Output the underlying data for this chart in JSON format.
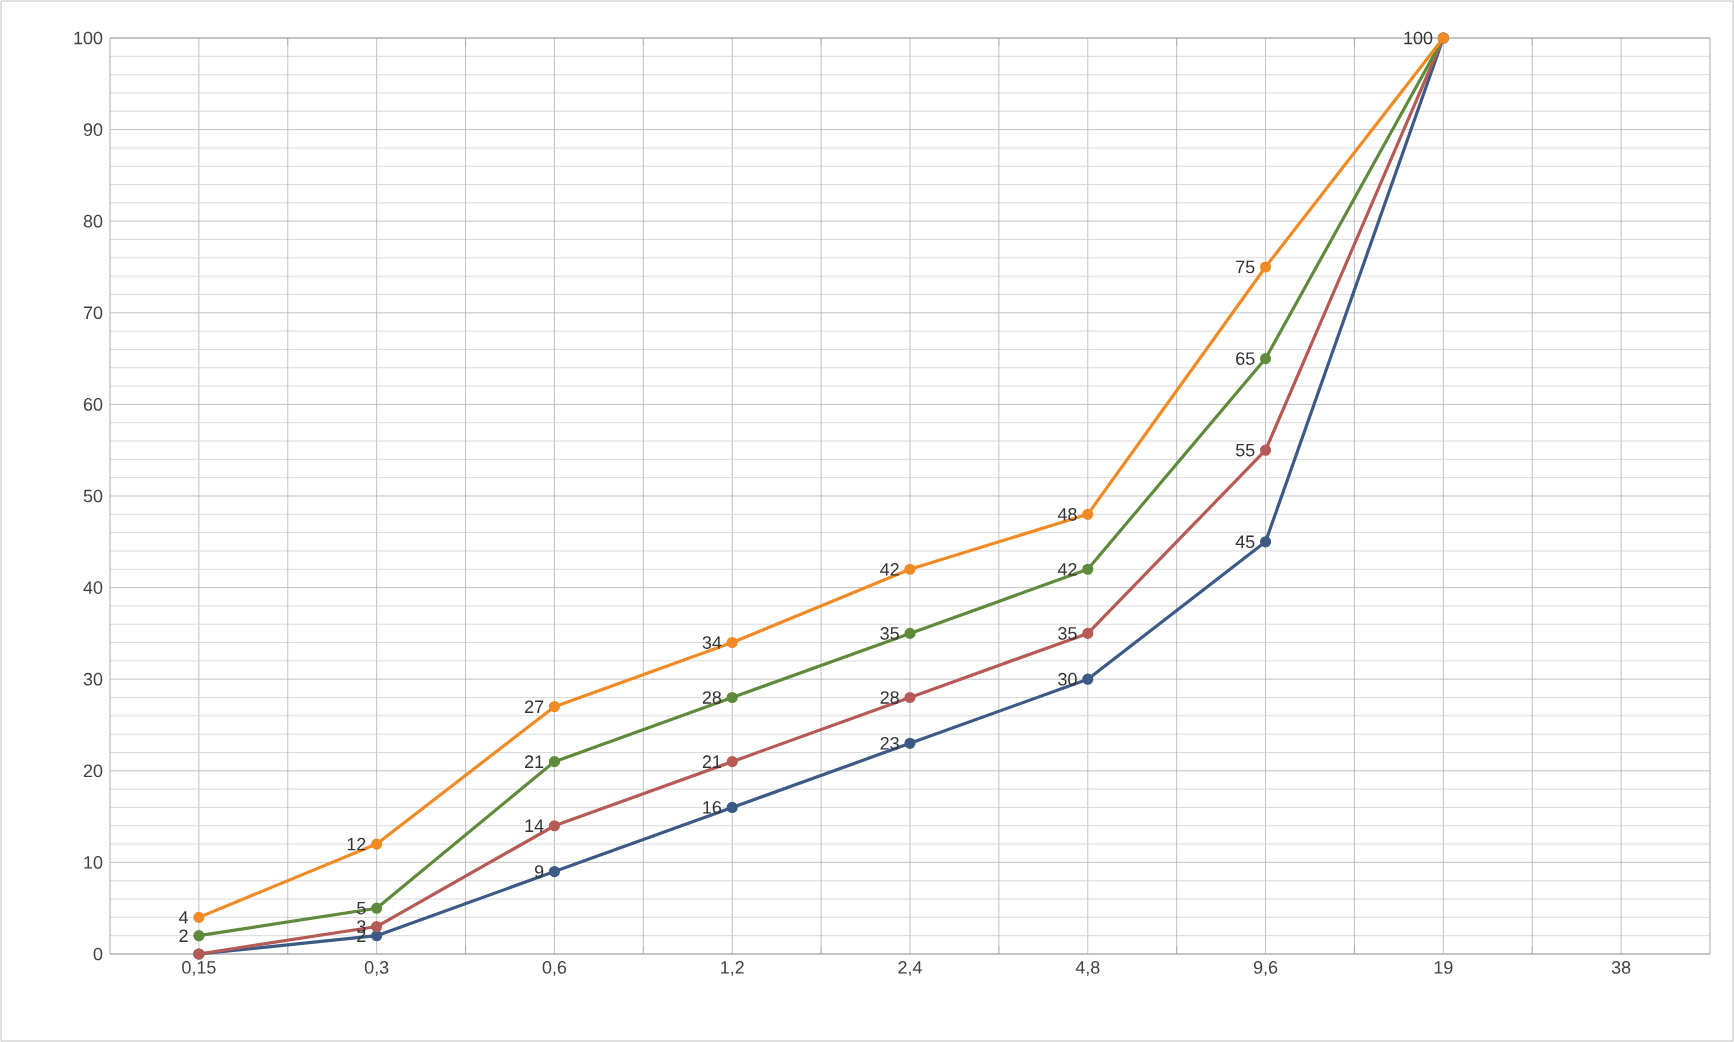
{
  "chart_data": {
    "type": "line",
    "categories": [
      "0,15",
      "0,3",
      "0,6",
      "1,2",
      "2,4",
      "4,8",
      "9,6",
      "19",
      "38"
    ],
    "series": [
      {
        "color": "#3b5a86",
        "values": [
          0,
          2,
          9,
          16,
          23,
          30,
          45,
          100,
          null
        ],
        "value_labels": [
          null,
          "2",
          "9",
          "16",
          "23",
          "30",
          "45",
          null,
          null
        ]
      },
      {
        "color": "#b55a55",
        "values": [
          0,
          3,
          14,
          21,
          28,
          35,
          55,
          100,
          null
        ],
        "value_labels": [
          null,
          "3",
          "14",
          "21",
          "28",
          "35",
          "55",
          null,
          null
        ]
      },
      {
        "color": "#5f8a3b",
        "values": [
          2,
          5,
          21,
          28,
          35,
          42,
          65,
          100,
          null
        ],
        "value_labels": [
          "2",
          "5",
          "21",
          "28",
          "35",
          "42",
          "65",
          "100",
          null
        ]
      },
      {
        "color": "#f08a24",
        "values": [
          4,
          12,
          27,
          34,
          42,
          48,
          75,
          100,
          null
        ],
        "value_labels": [
          "4",
          "12",
          "27",
          "34",
          "42",
          "48",
          "75",
          null,
          null
        ]
      }
    ],
    "ylim": [
      0,
      100
    ],
    "yticks": [
      0,
      10,
      20,
      30,
      40,
      50,
      60,
      70,
      80,
      90,
      100
    ],
    "grid": true,
    "marker": "circle",
    "line_style": "solid"
  }
}
